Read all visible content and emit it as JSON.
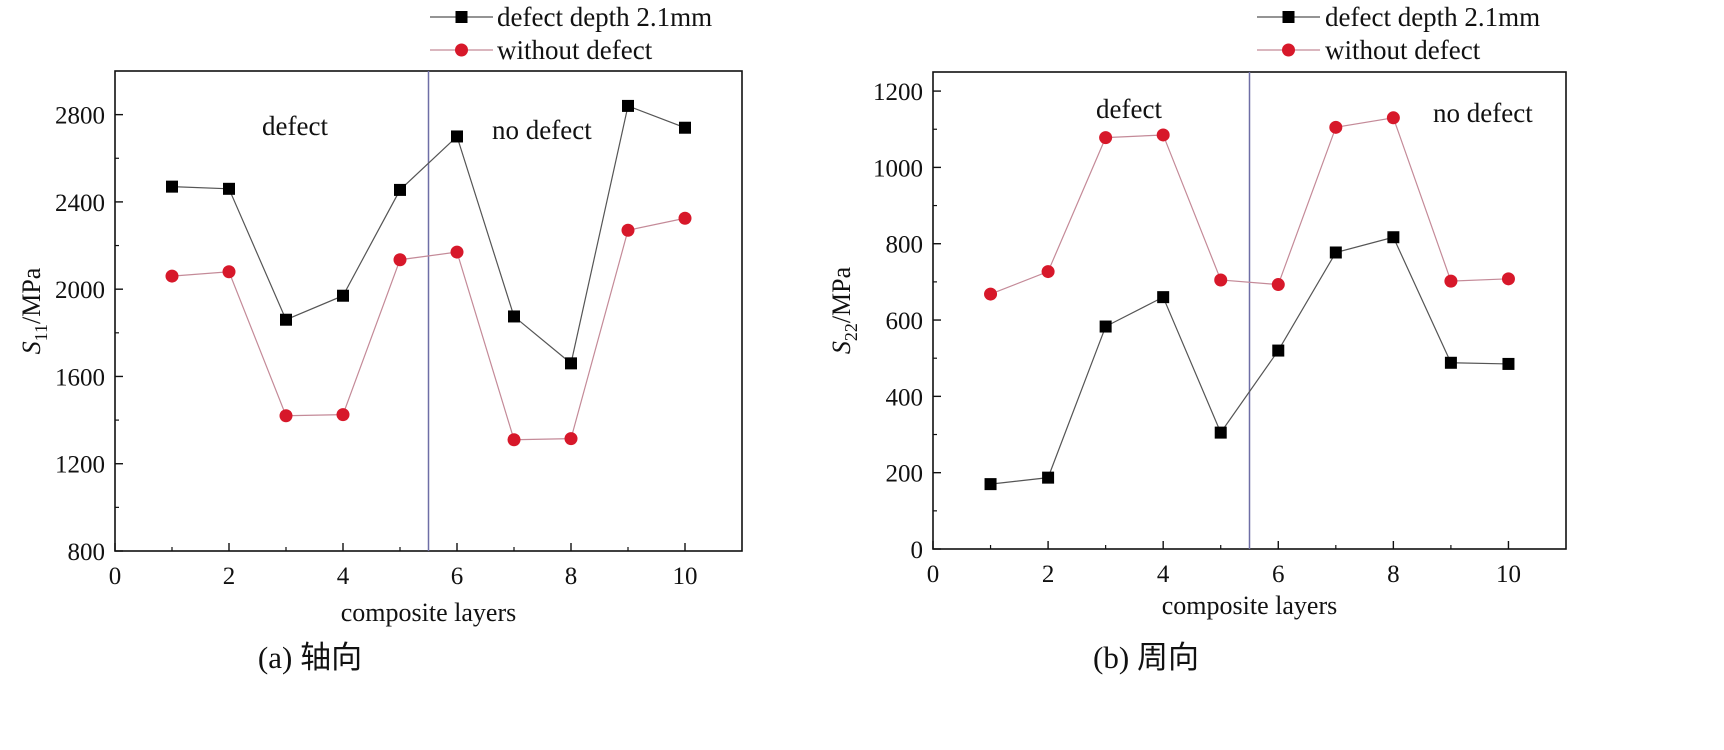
{
  "figure": {
    "captions": [
      "(a)  轴向",
      "(b)  周向"
    ]
  },
  "chart_data": [
    {
      "type": "line",
      "panel": "a",
      "xlabel": "composite layers",
      "ylabel": "S11/MPa",
      "ylabel_main": "S",
      "ylabel_sub": "11",
      "ylabel_unit": "/MPa",
      "xlim": [
        0,
        11
      ],
      "ylim": [
        800,
        3000
      ],
      "xticks": [
        0,
        2,
        4,
        6,
        8,
        10
      ],
      "yticks": [
        800,
        1200,
        1600,
        2000,
        2400,
        2800
      ],
      "divider_x": 5.5,
      "grid": false,
      "legend_position": "top-right, above plot",
      "region_labels": {
        "left": "defect",
        "right": "no defect"
      },
      "x": [
        1,
        2,
        3,
        4,
        5,
        6,
        7,
        8,
        9,
        10
      ],
      "series": [
        {
          "name": "defect depth 2.1mm",
          "marker": "square",
          "color": "#000000",
          "line_color": "#555555",
          "values": [
            2470,
            2460,
            1860,
            1970,
            2455,
            2700,
            1875,
            1660,
            2840,
            2740
          ]
        },
        {
          "name": "without defect",
          "marker": "circle",
          "color": "#d7182a",
          "line_color": "#c48a98",
          "values": [
            2060,
            2080,
            1420,
            1425,
            2135,
            2170,
            1310,
            1315,
            2270,
            2325
          ]
        }
      ]
    },
    {
      "type": "line",
      "panel": "b",
      "xlabel": "composite layers",
      "ylabel": "S22/MPa",
      "ylabel_main": "S",
      "ylabel_sub": "22",
      "ylabel_unit": "/MPa",
      "xlim": [
        0,
        11
      ],
      "ylim": [
        0,
        1250
      ],
      "xticks": [
        0,
        2,
        4,
        6,
        8,
        10
      ],
      "yticks": [
        0,
        200,
        400,
        600,
        800,
        1000,
        1200
      ],
      "divider_x": 5.5,
      "grid": false,
      "legend_position": "top-right, above plot",
      "region_labels": {
        "left": "defect",
        "right": "no defect"
      },
      "x": [
        1,
        2,
        3,
        4,
        5,
        6,
        7,
        8,
        9,
        10
      ],
      "series": [
        {
          "name": "defect depth 2.1mm",
          "marker": "square",
          "color": "#000000",
          "line_color": "#555555",
          "values": [
            170,
            187,
            583,
            660,
            305,
            520,
            777,
            817,
            488,
            485
          ]
        },
        {
          "name": "without defect",
          "marker": "circle",
          "color": "#d7182a",
          "line_color": "#c48a98",
          "values": [
            668,
            727,
            1078,
            1085,
            705,
            693,
            1105,
            1130,
            702,
            708
          ]
        }
      ]
    }
  ]
}
